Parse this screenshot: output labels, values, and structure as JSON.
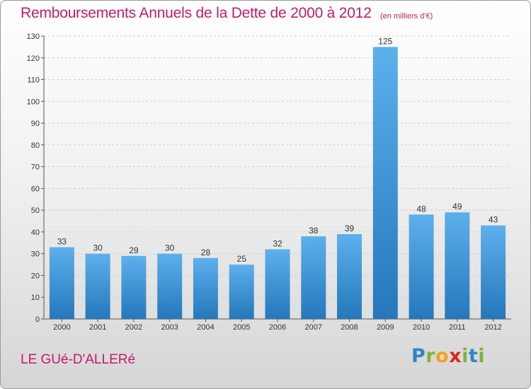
{
  "title": "Remboursements Annuels de la Dette de 2000 à 2012",
  "subtitle": "(en milliers d'€)",
  "place": "LE GUé-D'ALLERé",
  "logo": {
    "letters": [
      "P",
      "r",
      "o",
      "x",
      "i",
      "t",
      "i"
    ]
  },
  "colors": {
    "title": "#c21a6e",
    "bar_top": "#5db0ec",
    "bar_bottom": "#2478bb",
    "grid": "#cfcfcf"
  },
  "chart_data": {
    "type": "bar",
    "title": "Remboursements Annuels de la Dette de 2000 à 2012",
    "xlabel": "",
    "ylabel": "",
    "categories": [
      "2000",
      "2001",
      "2002",
      "2003",
      "2004",
      "2005",
      "2006",
      "2007",
      "2008",
      "2009",
      "2010",
      "2011",
      "2012"
    ],
    "values": [
      33,
      30,
      29,
      30,
      28,
      25,
      32,
      38,
      39,
      125,
      48,
      49,
      43
    ],
    "ylim": [
      0,
      130
    ],
    "yticks": [
      0,
      10,
      20,
      30,
      40,
      50,
      60,
      70,
      80,
      90,
      100,
      110,
      120,
      130
    ],
    "grid": "dashed horizontal",
    "legend": "none"
  }
}
